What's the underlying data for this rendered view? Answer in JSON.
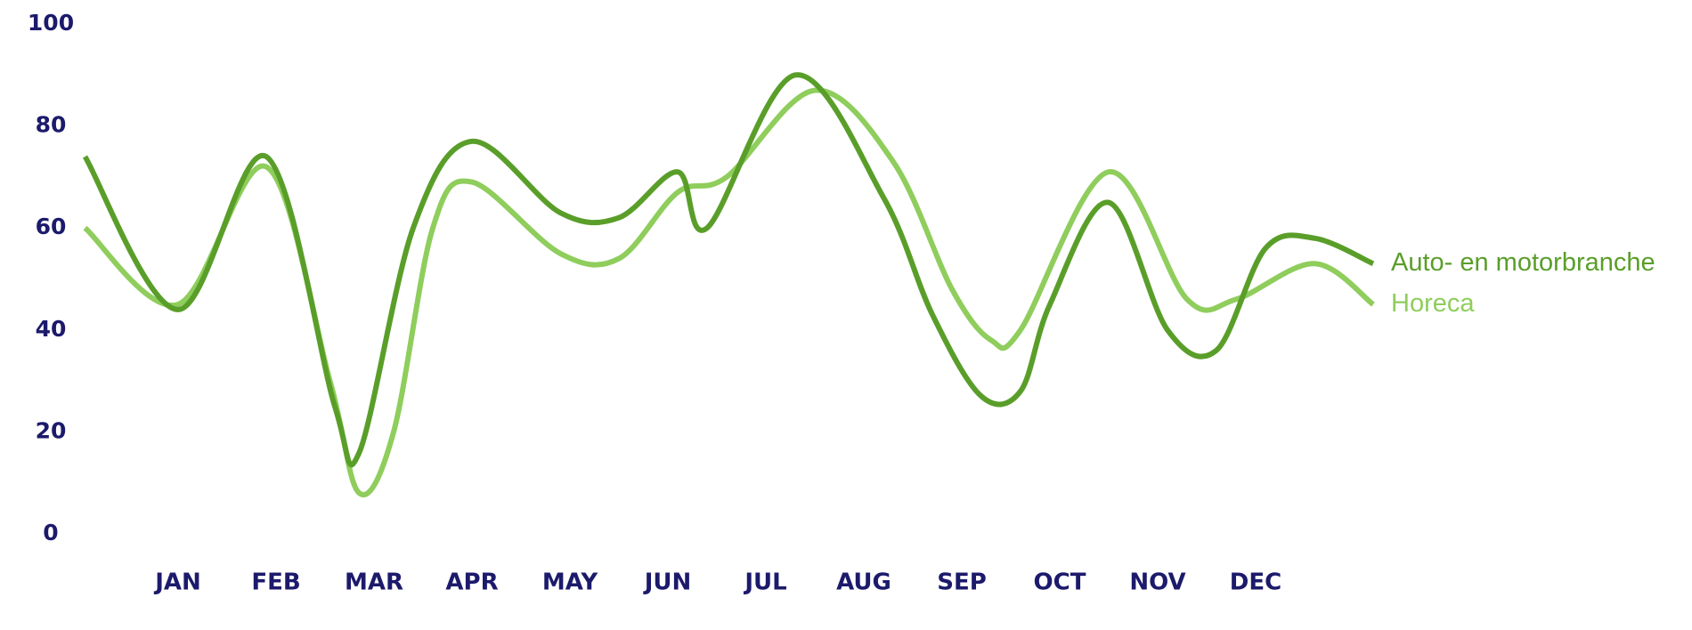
{
  "chart_data": {
    "type": "line",
    "title": "",
    "xlabel": "",
    "ylabel": "",
    "ylim": [
      0,
      100
    ],
    "yticks": [
      "0",
      "20",
      "40",
      "60",
      "80",
      "100"
    ],
    "categories": [
      "JAN",
      "FEB",
      "MAR",
      "APR",
      "MAY",
      "JUN",
      "JUL",
      "AUG",
      "SEP",
      "OCT",
      "NOV",
      "DEC"
    ],
    "grid": false,
    "legend": "right, at line ends",
    "series": [
      {
        "name": "Auto- en motorbranche",
        "color": "#5a9e2a",
        "points": [
          [
            -0.95,
            74
          ],
          [
            0,
            44
          ],
          [
            0.9,
            74
          ],
          [
            1.6,
            25
          ],
          [
            1.85,
            16
          ],
          [
            2.4,
            60
          ],
          [
            3,
            77
          ],
          [
            3.9,
            63
          ],
          [
            4.5,
            62
          ],
          [
            5.1,
            71
          ],
          [
            5.4,
            60
          ],
          [
            6.3,
            90
          ],
          [
            7.2,
            66
          ],
          [
            7.7,
            43
          ],
          [
            8.2,
            27
          ],
          [
            8.6,
            28
          ],
          [
            8.9,
            45
          ],
          [
            9.5,
            65
          ],
          [
            10.1,
            40
          ],
          [
            10.6,
            36
          ],
          [
            11.1,
            56
          ],
          [
            11.6,
            58
          ],
          [
            12.2,
            53
          ]
        ]
      },
      {
        "name": "Horeca",
        "color": "#8fcd5c",
        "points": [
          [
            -0.95,
            60
          ],
          [
            0,
            45
          ],
          [
            0.9,
            72
          ],
          [
            1.55,
            30
          ],
          [
            1.85,
            8
          ],
          [
            2.2,
            20
          ],
          [
            2.6,
            60
          ],
          [
            3,
            69
          ],
          [
            3.9,
            55
          ],
          [
            4.5,
            54
          ],
          [
            5.1,
            67
          ],
          [
            5.6,
            70
          ],
          [
            6.5,
            87
          ],
          [
            7.3,
            73
          ],
          [
            7.9,
            48
          ],
          [
            8.3,
            38
          ],
          [
            8.6,
            40
          ],
          [
            9.5,
            71
          ],
          [
            10.3,
            46
          ],
          [
            10.8,
            46
          ],
          [
            11.6,
            53
          ],
          [
            12.2,
            45
          ]
        ]
      }
    ]
  }
}
